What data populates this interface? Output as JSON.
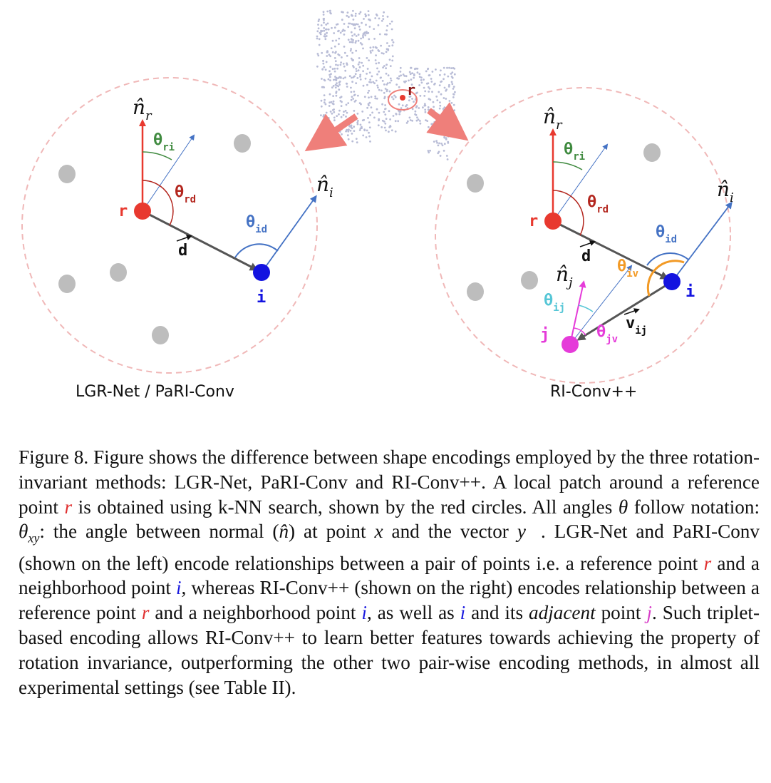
{
  "figure": {
    "left_panel": {
      "label": "LGR-Net  / PaRI-Conv",
      "normal_r": "n̂",
      "normal_r_sub": "r",
      "normal_i": "n̂",
      "normal_i_sub": "i",
      "theta_ri": "θ",
      "theta_ri_sub": "ri",
      "theta_rd": "θ",
      "theta_rd_sub": "rd",
      "theta_id": "θ",
      "theta_id_sub": "id",
      "point_r": "r",
      "point_i": "i",
      "vector_d": "d"
    },
    "right_panel": {
      "label": "RI-Conv++",
      "normal_r": "n̂",
      "normal_r_sub": "r",
      "normal_i": "n̂",
      "normal_i_sub": "i",
      "normal_j": "n̂",
      "normal_j_sub": "j",
      "theta_ri": "θ",
      "theta_ri_sub": "ri",
      "theta_rd": "θ",
      "theta_rd_sub": "rd",
      "theta_id": "θ",
      "theta_id_sub": "id",
      "theta_iv": "θ",
      "theta_iv_sub": "iv",
      "theta_ij": "θ",
      "theta_ij_sub": "ij",
      "theta_jv": "θ",
      "theta_jv_sub": "jv",
      "point_r": "r",
      "point_i": "i",
      "point_j": "j",
      "vector_d": "d",
      "vector_v": "v",
      "vector_v_sub": "ij"
    },
    "center_point_label": "r",
    "colors": {
      "red": "#e8392f",
      "blue": "#1313e0",
      "magenta": "#e53bd9",
      "green": "#3f8a3f",
      "dark_red": "#b3261e",
      "steel_blue": "#4472c4",
      "orange": "#f29a26",
      "cyan": "#55c6d6",
      "gray_point": "#bdbdbd",
      "dashed_circle": "#f0b8b8",
      "arrow_pink": "#ef7f7a",
      "cloud": "#b8bcd6"
    }
  },
  "caption": {
    "p1": "Figure 8.   Figure shows the difference between shape encodings employed by the three rotation-invariant methods: LGR-Net, PaRI-Conv and RI-Conv++. A local patch around a reference point ",
    "r1": "r",
    "p2": " is obtained using k-NN search, shown by the red circles. All angles ",
    "theta": "θ",
    "p3": " follow notation: ",
    "theta_xy": "θ",
    "xy": "xy",
    "p4": ": the angle between normal (",
    "nhat": "n̂",
    "p5": ") at point ",
    "x": "x",
    "p6": " and the vector ",
    "yvec": "y⃗",
    "p7": ". LGR-Net and PaRI-Conv (shown on the left) encode relationships between a pair of points i.e. a reference point ",
    "r2": "r",
    "p8": " and a neighborhood point ",
    "i1": "i",
    "p9": ", whereas RI-Conv++ (shown on the right) encodes relationship between a reference point ",
    "r3": "r",
    "p10": " and a neighborhood point ",
    "i2": "i",
    "p11": ", as well as ",
    "i3": "i",
    "p12": " and its ",
    "adjacent": "adjacent",
    "p13": " point ",
    "j1": "j",
    "p14": ". Such triplet-based encoding allows RI-Conv++ to learn better features towards achieving the property of rotation invariance, outperforming the other two pair-wise encoding methods, in almost all experimental settings (see Table II)."
  }
}
